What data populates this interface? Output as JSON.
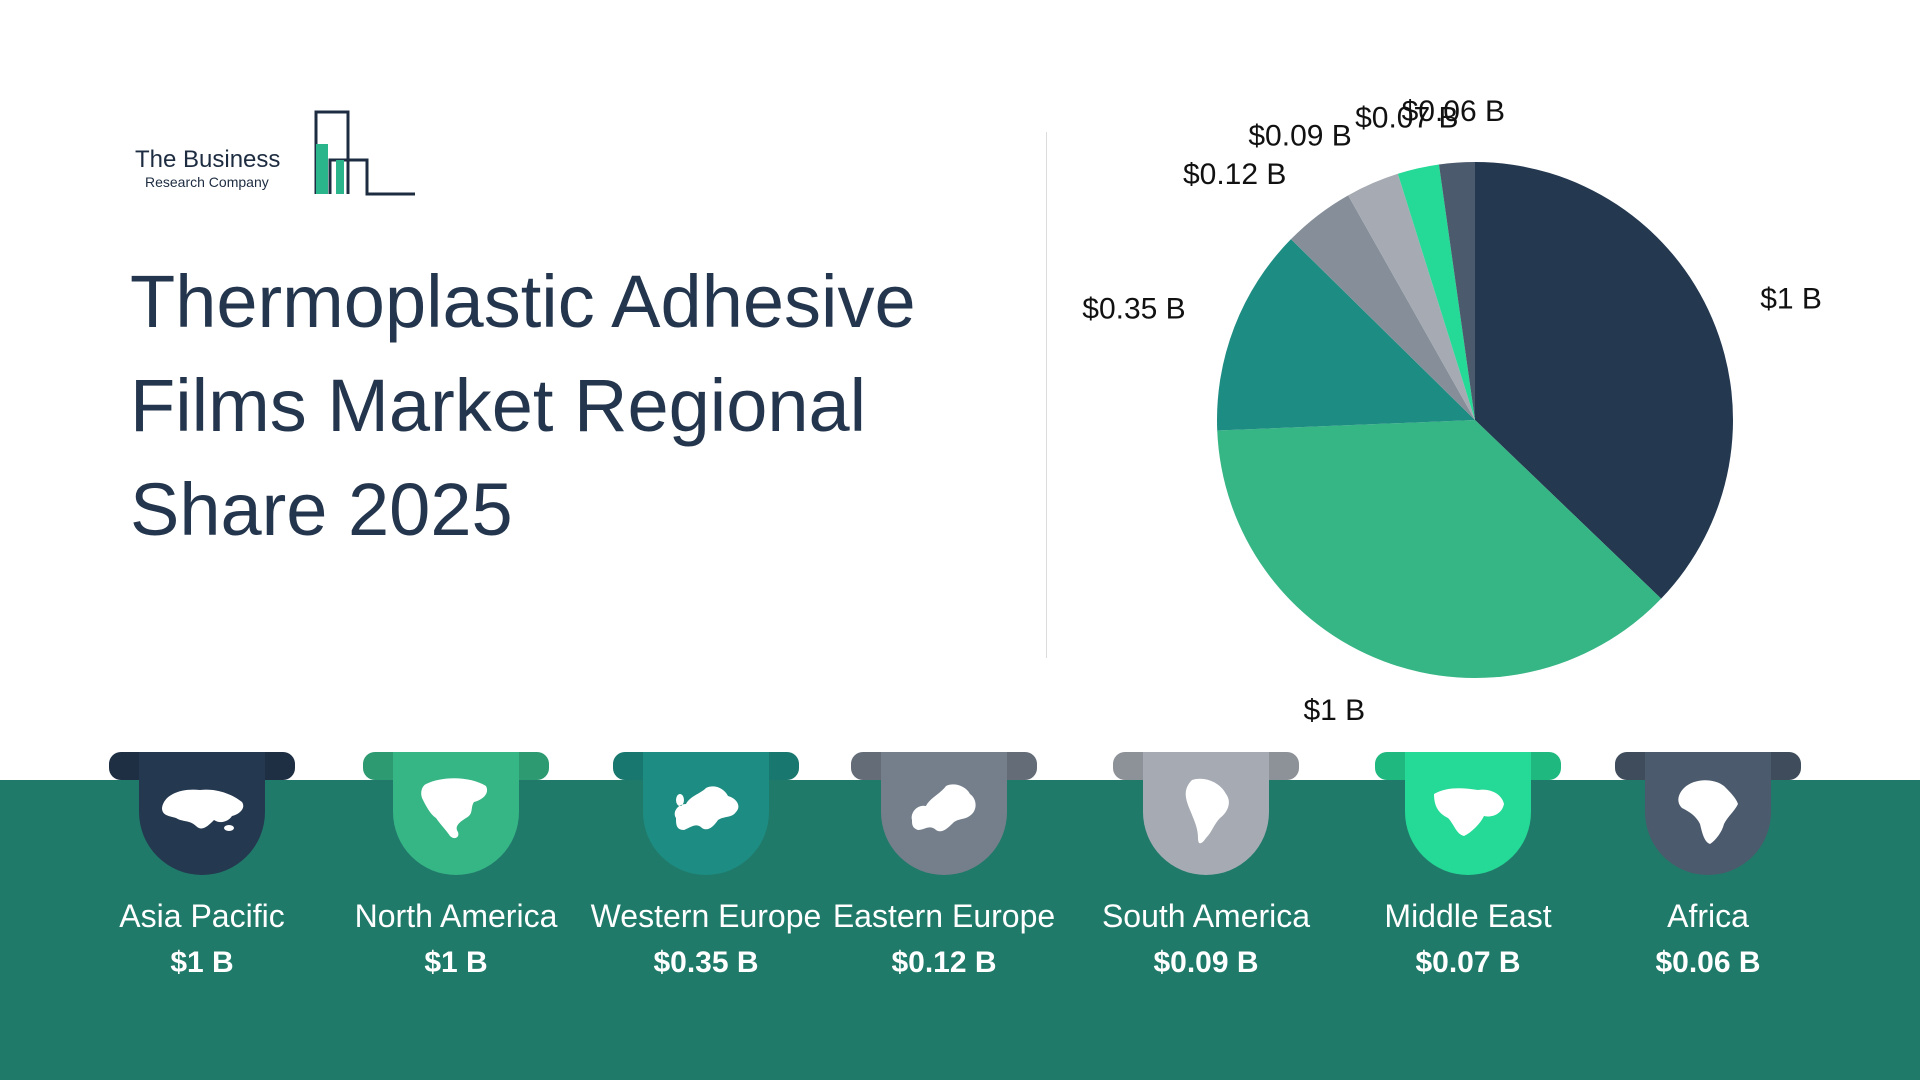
{
  "brand": {
    "line1": "The Business",
    "line2": "Research Company",
    "color": "#1d2c40",
    "accent": "#2bb58a"
  },
  "title": "Thermoplastic Adhesive Films Market Regional Share 2025",
  "chart_data": {
    "type": "pie",
    "title": "Thermoplastic Adhesive Films Market Regional Share 2025",
    "unit": "$ B",
    "start_angle_deg": 0,
    "direction": "clockwise",
    "categories": [
      "Asia Pacific",
      "North America",
      "Western Europe",
      "Eastern Europe",
      "South America",
      "Middle East",
      "Africa"
    ],
    "values": [
      1,
      1,
      0.35,
      0.12,
      0.09,
      0.07,
      0.06
    ],
    "labels": [
      "$1 B",
      "$1 B",
      "$0.35 B",
      "$0.12 B",
      "$0.09 B",
      "$0.07 B",
      "$0.06 B"
    ],
    "colors": [
      "#243850",
      "#36b585",
      "#1d8c82",
      "#868f99",
      "#a6abb3",
      "#25d996",
      "#4b5a6c"
    ],
    "legend": "bottom"
  },
  "regions": [
    {
      "name": "Asia Pacific",
      "value": "$1 B",
      "color": "#243850",
      "icon": "asia-map-icon"
    },
    {
      "name": "North America",
      "value": "$1 B",
      "color": "#36b585",
      "icon": "north-america-map-icon"
    },
    {
      "name": "Western Europe",
      "value": "$0.35 B",
      "color": "#1d8c82",
      "icon": "western-europe-map-icon"
    },
    {
      "name": "Eastern Europe",
      "value": "$0.12 B",
      "color": "#757f8c",
      "icon": "eastern-europe-map-icon"
    },
    {
      "name": "South America",
      "value": "$0.09 B",
      "color": "#a6abb3",
      "icon": "south-america-map-icon"
    },
    {
      "name": "Middle East",
      "value": "$0.07 B",
      "color": "#25d996",
      "icon": "middle-east-map-icon"
    },
    {
      "name": "Africa",
      "value": "$0.06 B",
      "color": "#4b5a6c",
      "icon": "africa-map-icon"
    }
  ],
  "band_color": "#207a6a"
}
